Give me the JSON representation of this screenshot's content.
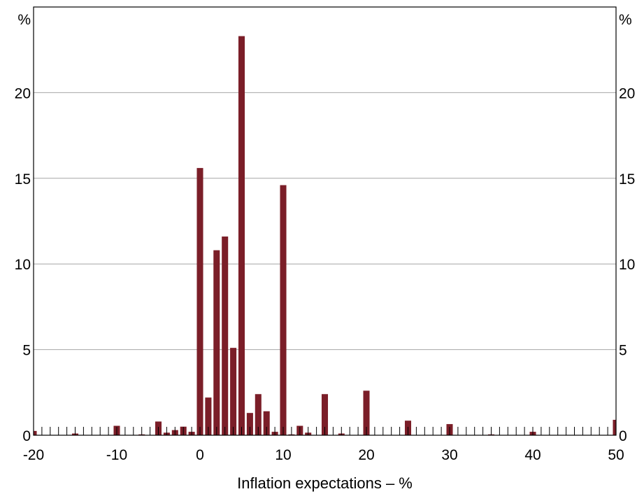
{
  "chart_data": {
    "type": "bar",
    "title": "",
    "xlabel": "Inflation expectations – %",
    "ylabel_left": "%",
    "ylabel_right": "%",
    "xlim": [
      -20,
      50
    ],
    "ylim": [
      0,
      25
    ],
    "x_ticks": [
      -20,
      -10,
      0,
      10,
      20,
      30,
      40,
      50
    ],
    "x_tick_labels": [
      "-20",
      "-10",
      "0",
      "10",
      "20",
      "30",
      "40",
      "50"
    ],
    "y_ticks": [
      0,
      5,
      10,
      15,
      20
    ],
    "y_tick_labels": [
      "0",
      "5",
      "10",
      "15",
      "20"
    ],
    "grid": true,
    "bar_color": "#7b1e28",
    "x": [
      -20,
      -15,
      -10,
      -7,
      -5,
      -4,
      -3,
      -2,
      -1,
      0,
      1,
      2,
      3,
      4,
      5,
      6,
      7,
      8,
      9,
      10,
      11,
      12,
      13,
      15,
      17,
      20,
      25,
      30,
      35,
      40,
      50
    ],
    "values": [
      0.25,
      0.1,
      0.55,
      0.05,
      0.8,
      0.15,
      0.3,
      0.5,
      0.2,
      15.6,
      2.2,
      10.8,
      11.6,
      5.1,
      23.3,
      1.3,
      2.4,
      1.4,
      0.2,
      14.6,
      0.05,
      0.55,
      0.15,
      2.4,
      0.1,
      2.6,
      0.85,
      0.65,
      0.05,
      0.2,
      0.9
    ]
  }
}
